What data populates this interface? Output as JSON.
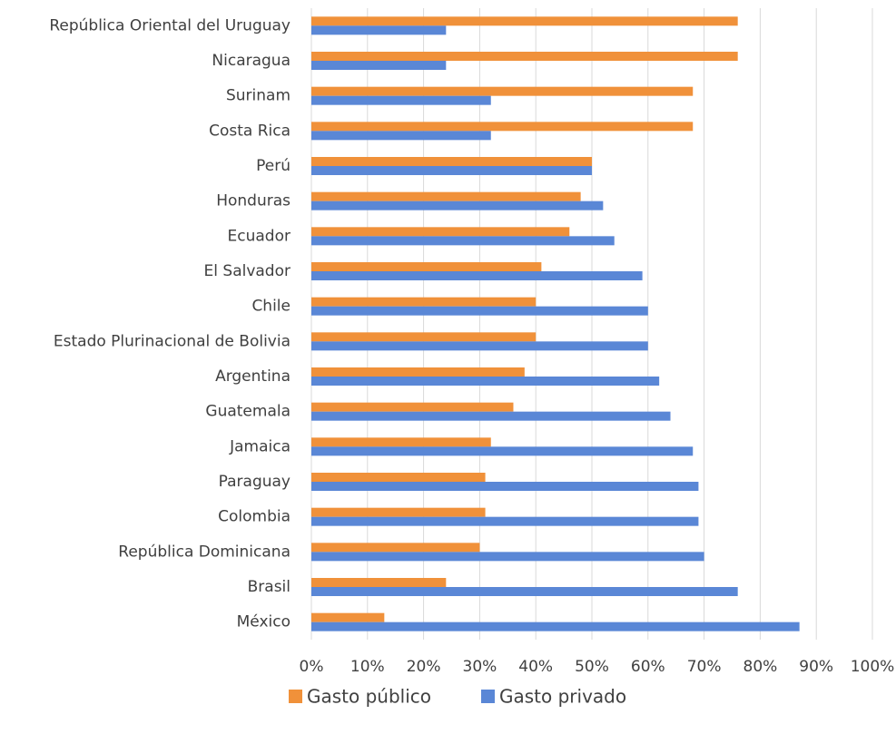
{
  "chart_data": {
    "type": "bar",
    "orientation": "horizontal",
    "categories": [
      "República Oriental del Uruguay",
      "Nicaragua",
      "Surinam",
      "Costa Rica",
      "Perú",
      "Honduras",
      "Ecuador",
      "El Salvador",
      "Chile",
      "Estado Plurinacional de Bolivia",
      "Argentina",
      "Guatemala",
      "Jamaica",
      "Paraguay",
      "Colombia",
      "República Dominicana",
      "Brasil",
      "México"
    ],
    "series": [
      {
        "name": "Gasto público",
        "color": "#f0913a",
        "values": [
          76,
          76,
          68,
          68,
          50,
          48,
          46,
          41,
          40,
          40,
          38,
          36,
          32,
          31,
          31,
          30,
          24,
          13
        ]
      },
      {
        "name": "Gasto privado",
        "color": "#5a87d6",
        "values": [
          24,
          24,
          32,
          32,
          50,
          52,
          54,
          59,
          60,
          60,
          62,
          64,
          68,
          69,
          69,
          70,
          76,
          87
        ]
      }
    ],
    "xlim": [
      0,
      100
    ],
    "xticks": [
      {
        "value": 0,
        "label": "0%"
      },
      {
        "value": 10,
        "label": "10%"
      },
      {
        "value": 20,
        "label": "20%"
      },
      {
        "value": 30,
        "label": "30%"
      },
      {
        "value": 40,
        "label": "40%"
      },
      {
        "value": 50,
        "label": "50%"
      },
      {
        "value": 60,
        "label": "60%"
      },
      {
        "value": 70,
        "label": "70%"
      },
      {
        "value": 80,
        "label": "80%"
      },
      {
        "value": 90,
        "label": "90%"
      },
      {
        "value": 100,
        "label": "100%"
      }
    ],
    "grid": true,
    "legend": "bottom"
  }
}
